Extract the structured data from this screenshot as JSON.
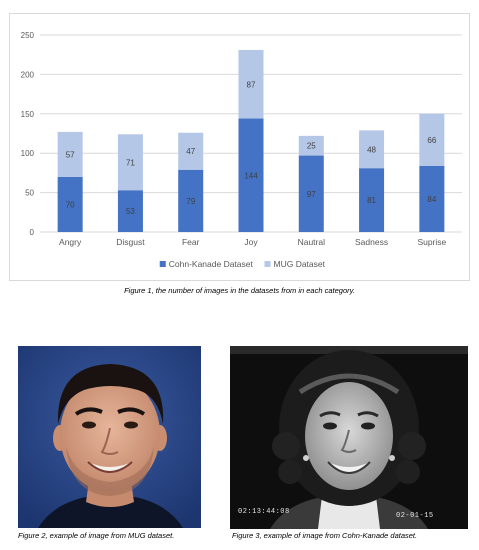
{
  "chart_data": {
    "type": "bar",
    "stacked": true,
    "categories": [
      "Angry",
      "Disgust",
      "Fear",
      "Joy",
      "Nautral",
      "Sadness",
      "Suprise"
    ],
    "series": [
      {
        "name": "Cohn-Kanade Dataset",
        "values": [
          70,
          53,
          79,
          144,
          97,
          81,
          84
        ],
        "color": "#4472c4"
      },
      {
        "name": "MUG Dataset",
        "values": [
          57,
          71,
          47,
          87,
          25,
          48,
          66
        ],
        "color": "#b4c7e7"
      }
    ],
    "ylim": [
      0,
      250
    ],
    "yticks": [
      0,
      50,
      100,
      150,
      200,
      250
    ],
    "grid": true,
    "legend": "bottom"
  },
  "captions": {
    "figure1": "Figure 1, the number of images in the datasets from in each category.",
    "figure2": "Figure 2, example of image from MUG dataset.",
    "figure3": "Figure 3, example of image from Cohn-Kanade dataset."
  },
  "photo_stamps": {
    "time": "02:13:44:08",
    "date": "02-01-15"
  }
}
